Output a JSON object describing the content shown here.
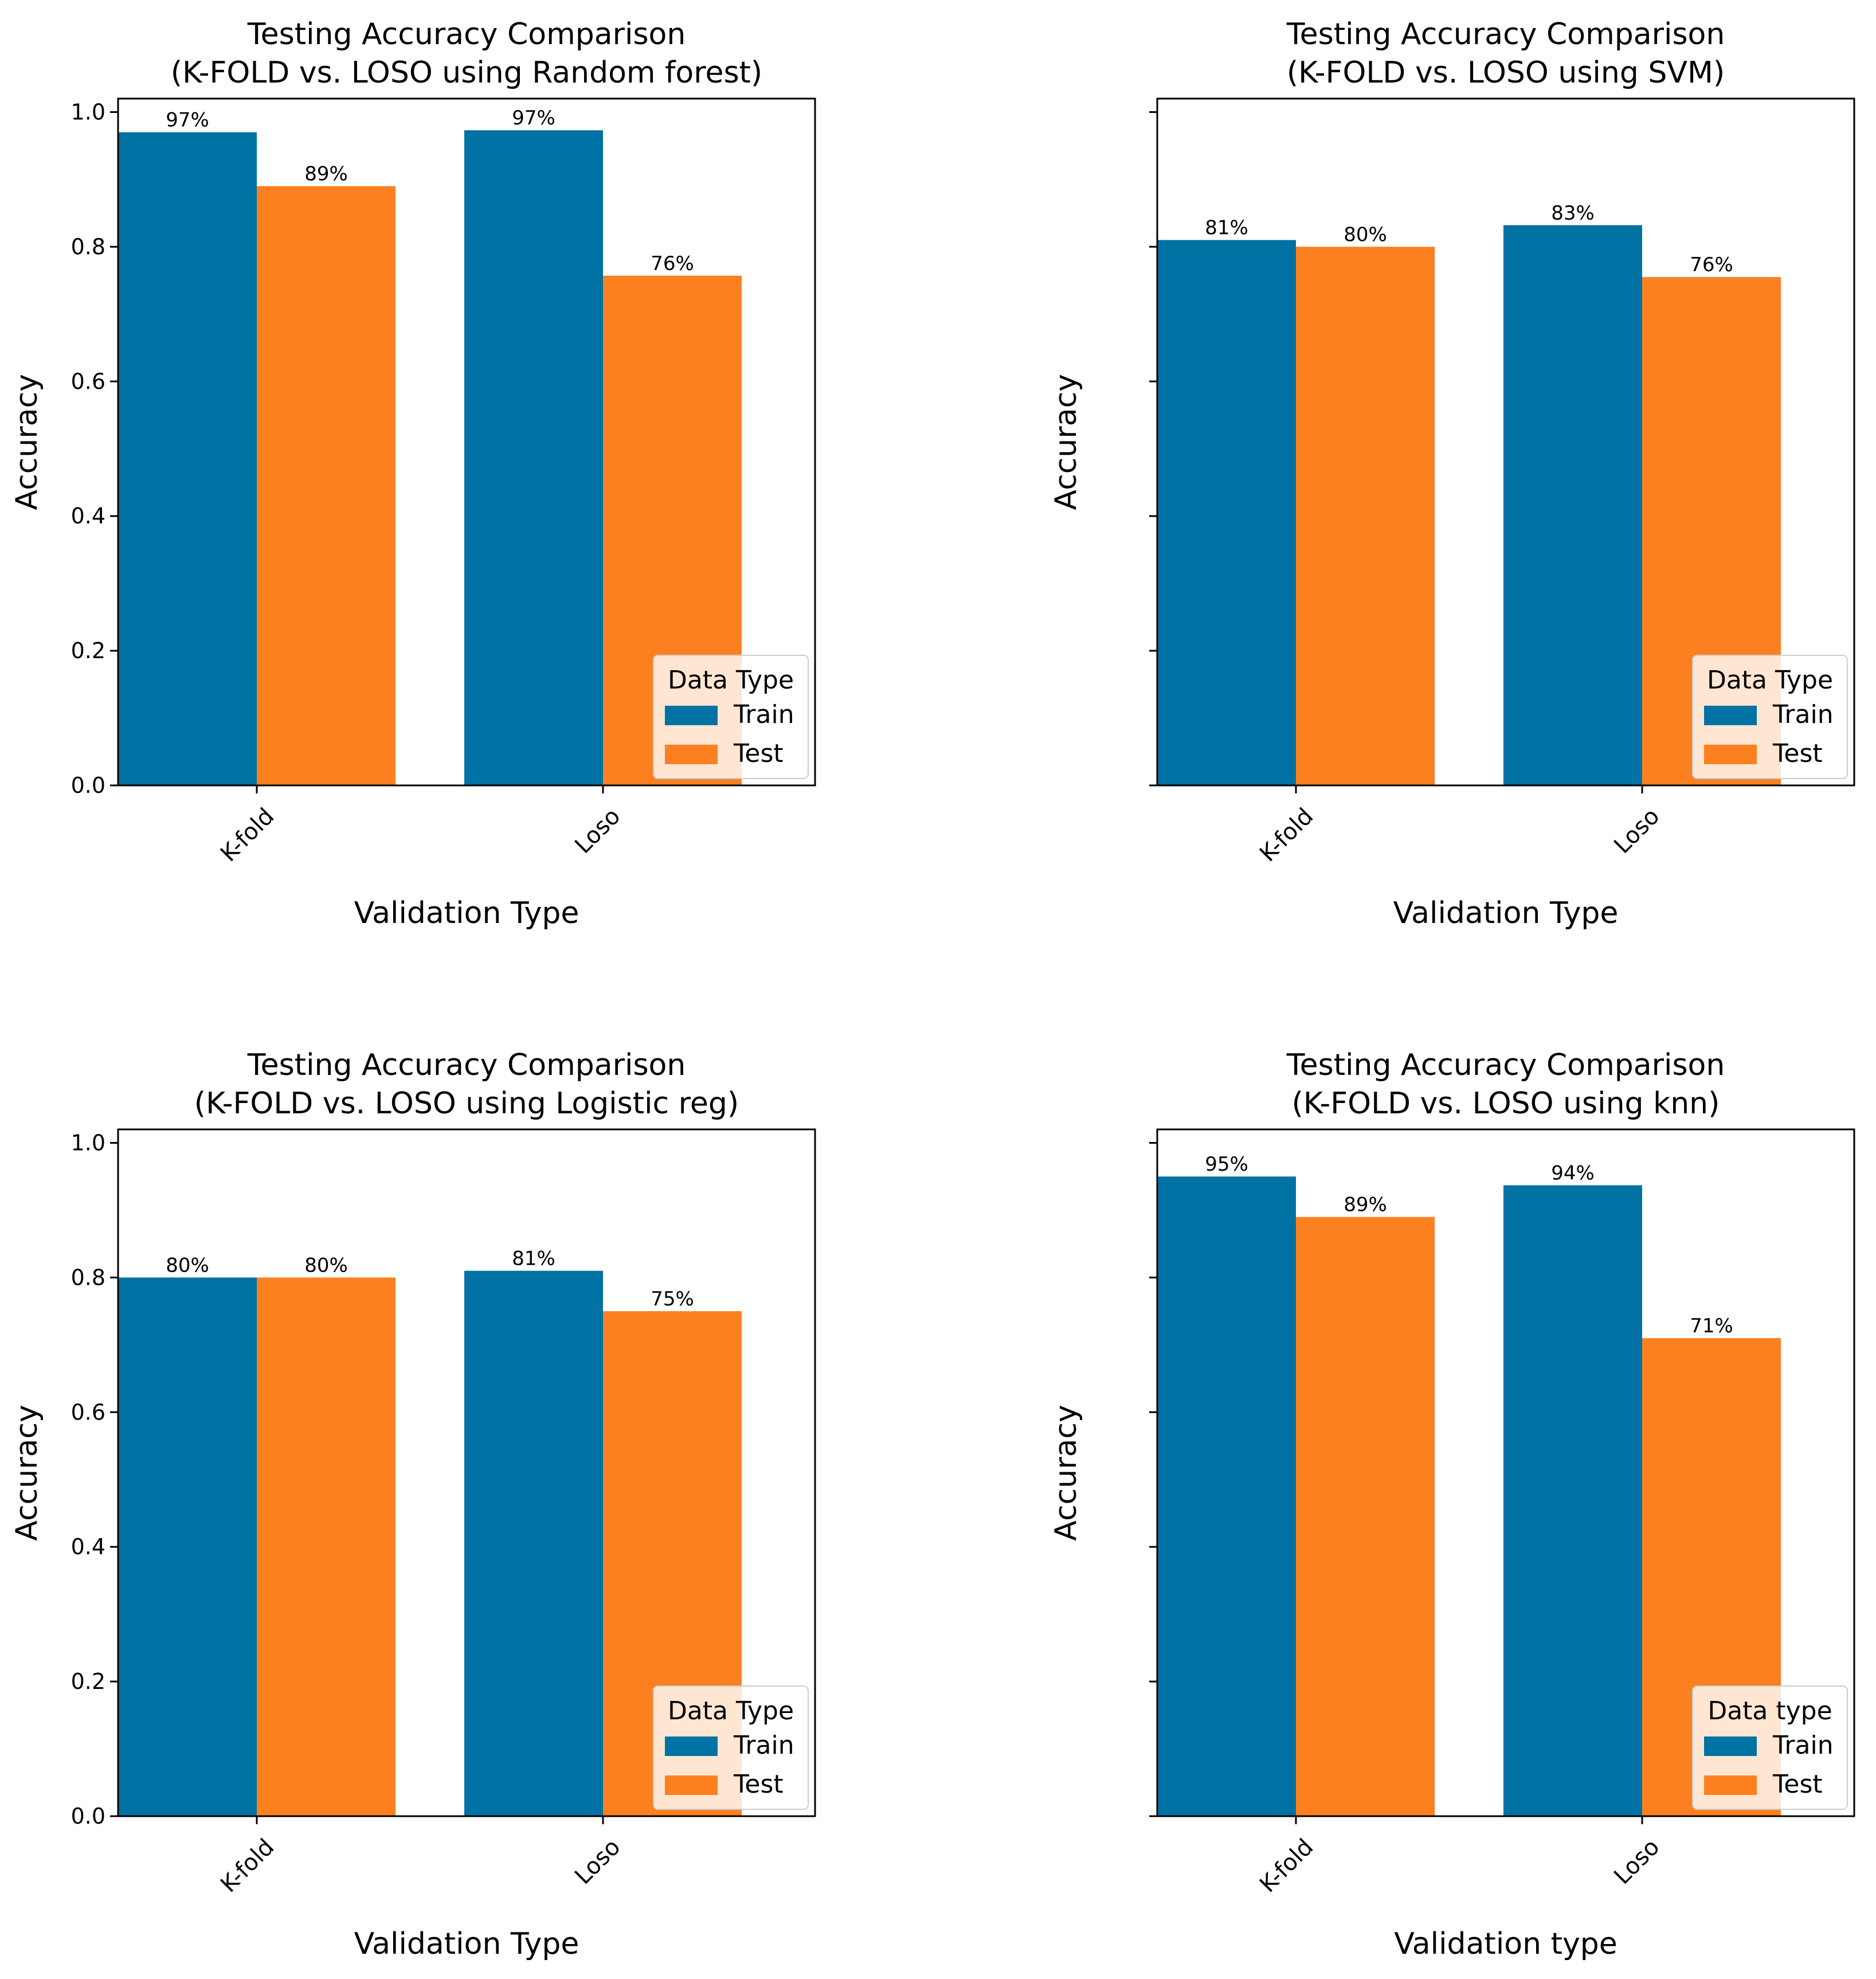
{
  "figure": {
    "background": "#ffffff"
  },
  "legend_colors": {
    "train": "#0072a3",
    "test": "#fd8020"
  },
  "chart_data": [
    {
      "type": "bar",
      "title": "Testing Accuracy Comparison",
      "subtitle": "(K-FOLD vs. LOSO using Random forest)",
      "xlabel": "Validation Type",
      "ylabel": "Accuracy",
      "categories": [
        "K-fold",
        "Loso"
      ],
      "ylim": [
        0,
        1.02
      ],
      "yticks": [
        "0.0",
        "0.2",
        "0.4",
        "0.6",
        "0.8",
        "1.0"
      ],
      "show_ytick_labels": true,
      "series": [
        {
          "name": "Train",
          "values": [
            0.97,
            0.973
          ],
          "labels": [
            "97%",
            "97%"
          ]
        },
        {
          "name": "Test",
          "values": [
            0.89,
            0.757
          ],
          "labels": [
            "89%",
            "76%"
          ]
        }
      ],
      "legend": {
        "title": "Data Type",
        "position": "lower-right"
      }
    },
    {
      "type": "bar",
      "title": "Testing Accuracy Comparison",
      "subtitle": "(K-FOLD vs. LOSO using SVM)",
      "xlabel": "Validation Type",
      "ylabel": "Accuracy",
      "categories": [
        "K-fold",
        "Loso"
      ],
      "ylim": [
        0,
        1.02
      ],
      "yticks": [
        "0.0",
        "0.2",
        "0.4",
        "0.6",
        "0.8",
        "1.0"
      ],
      "show_ytick_labels": false,
      "series": [
        {
          "name": "Train",
          "values": [
            0.81,
            0.832
          ],
          "labels": [
            "81%",
            "83%"
          ]
        },
        {
          "name": "Test",
          "values": [
            0.8,
            0.755
          ],
          "labels": [
            "80%",
            "76%"
          ]
        }
      ],
      "legend": {
        "title": "Data Type",
        "position": "lower-right"
      }
    },
    {
      "type": "bar",
      "title": "Testing Accuracy Comparison",
      "subtitle": "(K-FOLD vs. LOSO using Logistic reg)",
      "xlabel": "Validation Type",
      "ylabel": "Accuracy",
      "categories": [
        "K-fold",
        "Loso"
      ],
      "ylim": [
        0,
        1.02
      ],
      "yticks": [
        "0.0",
        "0.2",
        "0.4",
        "0.6",
        "0.8",
        "1.0"
      ],
      "show_ytick_labels": true,
      "series": [
        {
          "name": "Train",
          "values": [
            0.8,
            0.81
          ],
          "labels": [
            "80%",
            "81%"
          ]
        },
        {
          "name": "Test",
          "values": [
            0.8,
            0.75
          ],
          "labels": [
            "80%",
            "75%"
          ]
        }
      ],
      "legend": {
        "title": "Data Type",
        "position": "lower-right"
      }
    },
    {
      "type": "bar",
      "title": "Testing Accuracy Comparison",
      "subtitle": "(K-FOLD vs. LOSO using knn)",
      "xlabel": "Validation type",
      "ylabel": "Accuracy",
      "categories": [
        "K-fold",
        "Loso"
      ],
      "ylim": [
        0,
        1.02
      ],
      "yticks": [
        "0.0",
        "0.2",
        "0.4",
        "0.6",
        "0.8",
        "1.0"
      ],
      "show_ytick_labels": false,
      "series": [
        {
          "name": "Train",
          "values": [
            0.95,
            0.937
          ],
          "labels": [
            "95%",
            "94%"
          ]
        },
        {
          "name": "Test",
          "values": [
            0.89,
            0.71
          ],
          "labels": [
            "89%",
            "71%"
          ]
        }
      ],
      "legend": {
        "title": "Data type",
        "position": "lower-right"
      }
    }
  ]
}
